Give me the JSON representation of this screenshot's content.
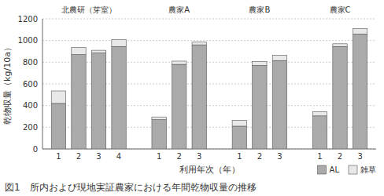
{
  "chart_data": {
    "type": "bar",
    "stacked": true,
    "xlabel": "利用年次（年）",
    "ylabel": "乾物収量（kg/10a）",
    "caption": "図1　所内および現地実証農家における年間乾物収量の推移",
    "categories": [
      "1",
      "2",
      "3",
      "4",
      "1",
      "2",
      "3",
      "1",
      "2",
      "3",
      "1",
      "2",
      "3"
    ],
    "groups": [
      {
        "label": "北農研（芽室）",
        "size": 4
      },
      {
        "label": "農家A",
        "size": 3
      },
      {
        "label": "農家B",
        "size": 3
      },
      {
        "label": "農家C",
        "size": 3
      }
    ],
    "series": [
      {
        "name": "AL",
        "color": "#aaaaaa",
        "values": [
          420,
          870,
          885,
          945,
          270,
          780,
          960,
          210,
          770,
          815,
          305,
          945,
          1060
        ]
      },
      {
        "name": "雑草",
        "color": "#e8e8e8",
        "values": [
          115,
          65,
          25,
          65,
          25,
          30,
          25,
          55,
          35,
          50,
          40,
          25,
          50
        ]
      }
    ],
    "ylim": [
      0,
      1200
    ],
    "yticks": [
      0,
      200,
      400,
      600,
      800,
      1000,
      1200
    ],
    "grid": true,
    "legend": "lower right"
  }
}
